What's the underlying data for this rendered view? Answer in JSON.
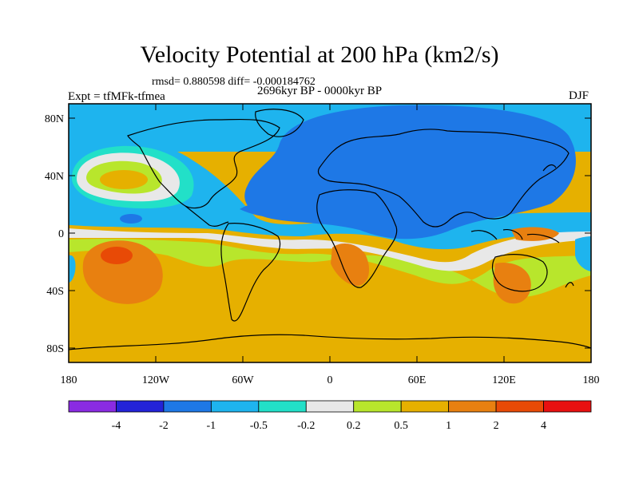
{
  "title": "Velocity Potential at 200 hPa (km2/s)",
  "stats_line": "rmsd= 0.880598 diff= -0.000184762",
  "period": "2696kyr BP - 0000kyr BP",
  "experiment": "Expt = tfMFk-tfmea",
  "season": "DJF",
  "map": {
    "projection": "cylindrical equidistant",
    "lon_range": [
      -180,
      180
    ],
    "lat_range": [
      -90,
      90
    ],
    "lat_ticks": [
      {
        "value": 80,
        "label": "80N"
      },
      {
        "value": 40,
        "label": "40N"
      },
      {
        "value": 0,
        "label": "0"
      },
      {
        "value": -40,
        "label": "40S"
      },
      {
        "value": -80,
        "label": "80S"
      }
    ],
    "lon_ticks": [
      {
        "value": -180,
        "label": "180"
      },
      {
        "value": -120,
        "label": "120W"
      },
      {
        "value": -60,
        "label": "60W"
      },
      {
        "value": 0,
        "label": "0"
      },
      {
        "value": 60,
        "label": "60E"
      },
      {
        "value": 120,
        "label": "120E"
      },
      {
        "value": 180,
        "label": "180"
      }
    ]
  },
  "colorbar": {
    "colors": [
      "#8a2be2",
      "#2323d8",
      "#1e78e6",
      "#1eb4ee",
      "#22e0c8",
      "#e8e8e8",
      "#b8e62c",
      "#e6b000",
      "#e88010",
      "#e84a06",
      "#e81010"
    ],
    "labels": [
      "-4",
      "-2",
      "-1",
      "-0.5",
      "-0.2",
      "0.2",
      "0.5",
      "1",
      "2",
      "4"
    ]
  }
}
